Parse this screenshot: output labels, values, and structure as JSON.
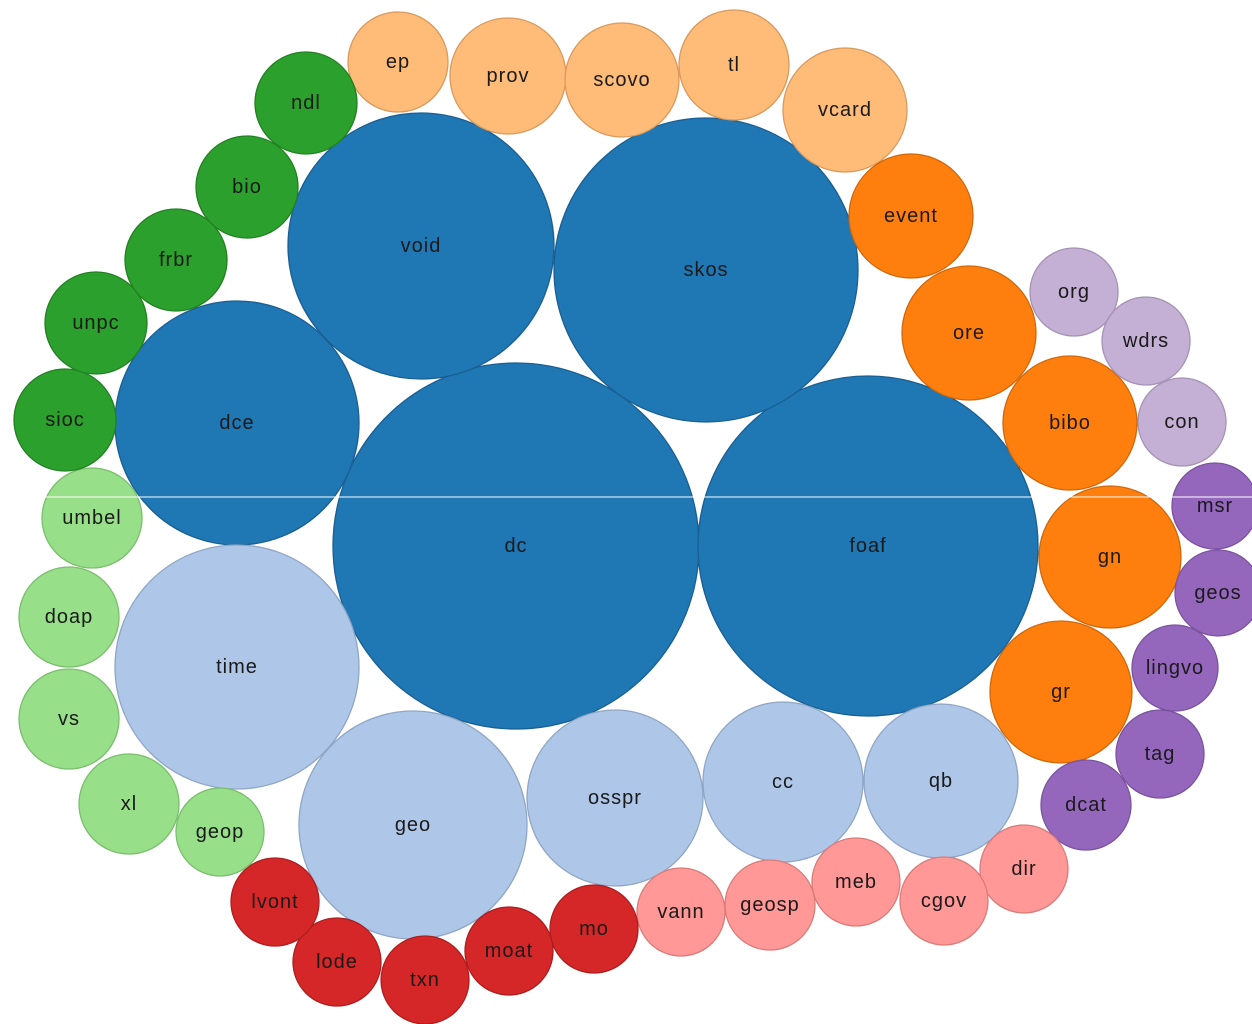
{
  "chart_data": {
    "type": "bubble-pack",
    "title": "",
    "nodes": [
      {
        "label": "dc",
        "group": "g1"
      },
      {
        "label": "foaf",
        "group": "g1"
      },
      {
        "label": "skos",
        "group": "g1"
      },
      {
        "label": "void",
        "group": "g1"
      },
      {
        "label": "dce",
        "group": "g1"
      },
      {
        "label": "time",
        "group": "g2"
      },
      {
        "label": "geo",
        "group": "g2"
      },
      {
        "label": "osspr",
        "group": "g2"
      },
      {
        "label": "cc",
        "group": "g2"
      },
      {
        "label": "qb",
        "group": "g2"
      },
      {
        "label": "ep",
        "group": "g3"
      },
      {
        "label": "prov",
        "group": "g3"
      },
      {
        "label": "scovo",
        "group": "g3"
      },
      {
        "label": "tl",
        "group": "g3"
      },
      {
        "label": "vcard",
        "group": "g3"
      },
      {
        "label": "event",
        "group": "g4"
      },
      {
        "label": "ore",
        "group": "g4"
      },
      {
        "label": "bibo",
        "group": "g4"
      },
      {
        "label": "gn",
        "group": "g4"
      },
      {
        "label": "gr",
        "group": "g4"
      },
      {
        "label": "org",
        "group": "g5"
      },
      {
        "label": "wdrs",
        "group": "g5"
      },
      {
        "label": "con",
        "group": "g5"
      },
      {
        "label": "msr",
        "group": "g6"
      },
      {
        "label": "geos",
        "group": "g6"
      },
      {
        "label": "lingvo",
        "group": "g6"
      },
      {
        "label": "tag",
        "group": "g6"
      },
      {
        "label": "dcat",
        "group": "g6"
      },
      {
        "label": "dir",
        "group": "g7"
      },
      {
        "label": "cgov",
        "group": "g7"
      },
      {
        "label": "meb",
        "group": "g7"
      },
      {
        "label": "geosp",
        "group": "g7"
      },
      {
        "label": "vann",
        "group": "g7"
      },
      {
        "label": "mo",
        "group": "g8"
      },
      {
        "label": "moat",
        "group": "g8"
      },
      {
        "label": "txn",
        "group": "g8"
      },
      {
        "label": "lode",
        "group": "g8"
      },
      {
        "label": "lvont",
        "group": "g8"
      },
      {
        "label": "geop",
        "group": "g9"
      },
      {
        "label": "xl",
        "group": "g9"
      },
      {
        "label": "vs",
        "group": "g9"
      },
      {
        "label": "doap",
        "group": "g9"
      },
      {
        "label": "umbel",
        "group": "g9"
      },
      {
        "label": "sioc",
        "group": "g10"
      },
      {
        "label": "unpc",
        "group": "g10"
      },
      {
        "label": "frbr",
        "group": "g10"
      },
      {
        "label": "bio",
        "group": "g10"
      },
      {
        "label": "ndl",
        "group": "g10"
      }
    ],
    "group_colors": {
      "g1": {
        "fill": "#1f77b4",
        "stroke": "#1a5f92"
      },
      "g2": {
        "fill": "#aec7e8",
        "stroke": "#8fa6c4"
      },
      "g3": {
        "fill": "#ffbb78",
        "stroke": "#d99a5c"
      },
      "g4": {
        "fill": "#ff7f0e",
        "stroke": "#d0670b"
      },
      "g5": {
        "fill": "#c5b0d5",
        "stroke": "#a592b4"
      },
      "g6": {
        "fill": "#9467bd",
        "stroke": "#7a539e"
      },
      "g7": {
        "fill": "#ff9896",
        "stroke": "#d97c7a"
      },
      "g8": {
        "fill": "#d62728",
        "stroke": "#ad1e1f"
      },
      "g9": {
        "fill": "#98df8a",
        "stroke": "#7bbf6e"
      },
      "g10": {
        "fill": "#2ca02c",
        "stroke": "#228022"
      }
    },
    "legend": "none",
    "grid": false
  }
}
